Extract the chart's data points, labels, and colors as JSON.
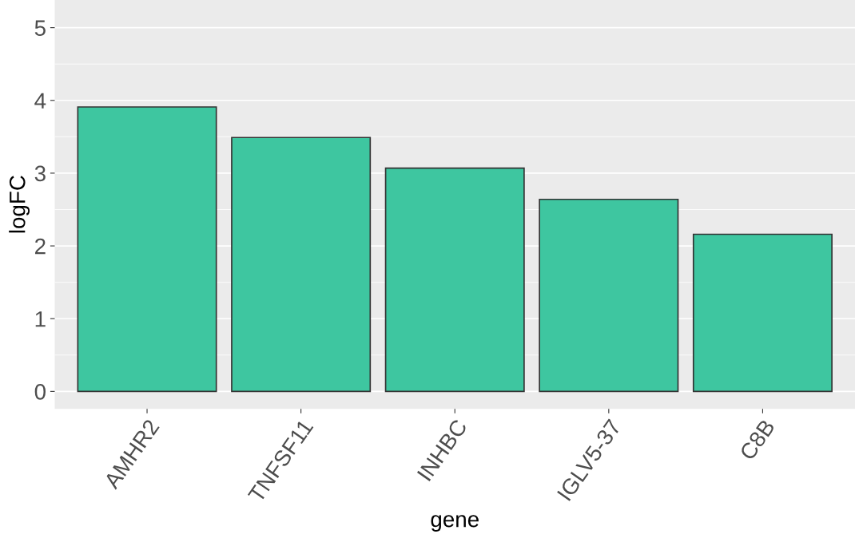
{
  "chart_data": {
    "type": "bar",
    "xlabel": "gene",
    "ylabel": "logFC",
    "categories": [
      "AMHR2",
      "TNFSF11",
      "INHBC",
      "IGLV5-37",
      "C8B"
    ],
    "values": [
      3.91,
      3.49,
      3.07,
      2.64,
      2.16
    ],
    "color": "#3ec6a0",
    "ylim": [
      -0.24,
      5.38
    ],
    "yticks": [
      0,
      1,
      2,
      3,
      4,
      5
    ],
    "grid": "y"
  }
}
